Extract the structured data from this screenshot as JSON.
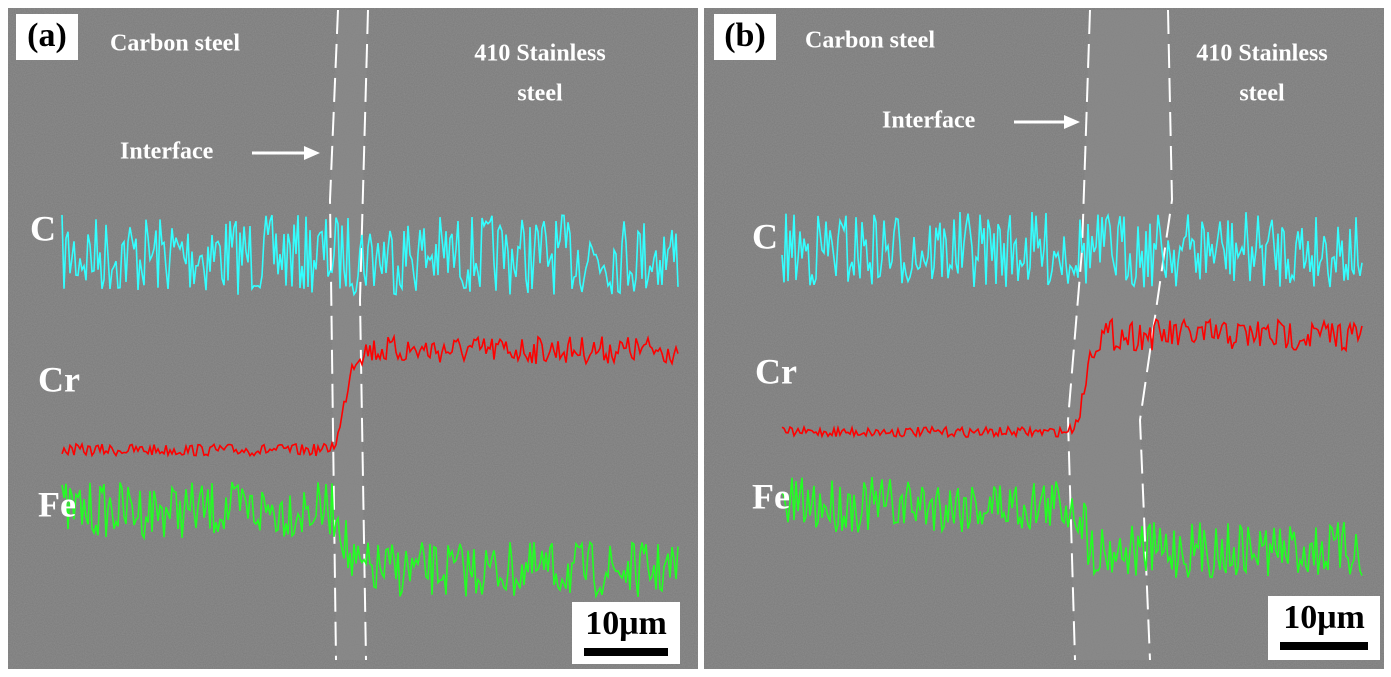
{
  "panels": [
    {
      "label": "(a)",
      "left_text": "Carbon steel",
      "right_text": [
        "410 Stainless",
        "steel"
      ],
      "interface": "Interface",
      "elements": [
        "C",
        "Cr",
        "Fe"
      ],
      "scale_bar": "10μm"
    },
    {
      "label": "(b)",
      "left_text": "Carbon steel",
      "right_text": [
        "410 Stainless",
        "steel"
      ],
      "interface": "Interface",
      "elements": [
        "C",
        "Cr",
        "Fe"
      ],
      "scale_bar": "10μm"
    }
  ]
}
